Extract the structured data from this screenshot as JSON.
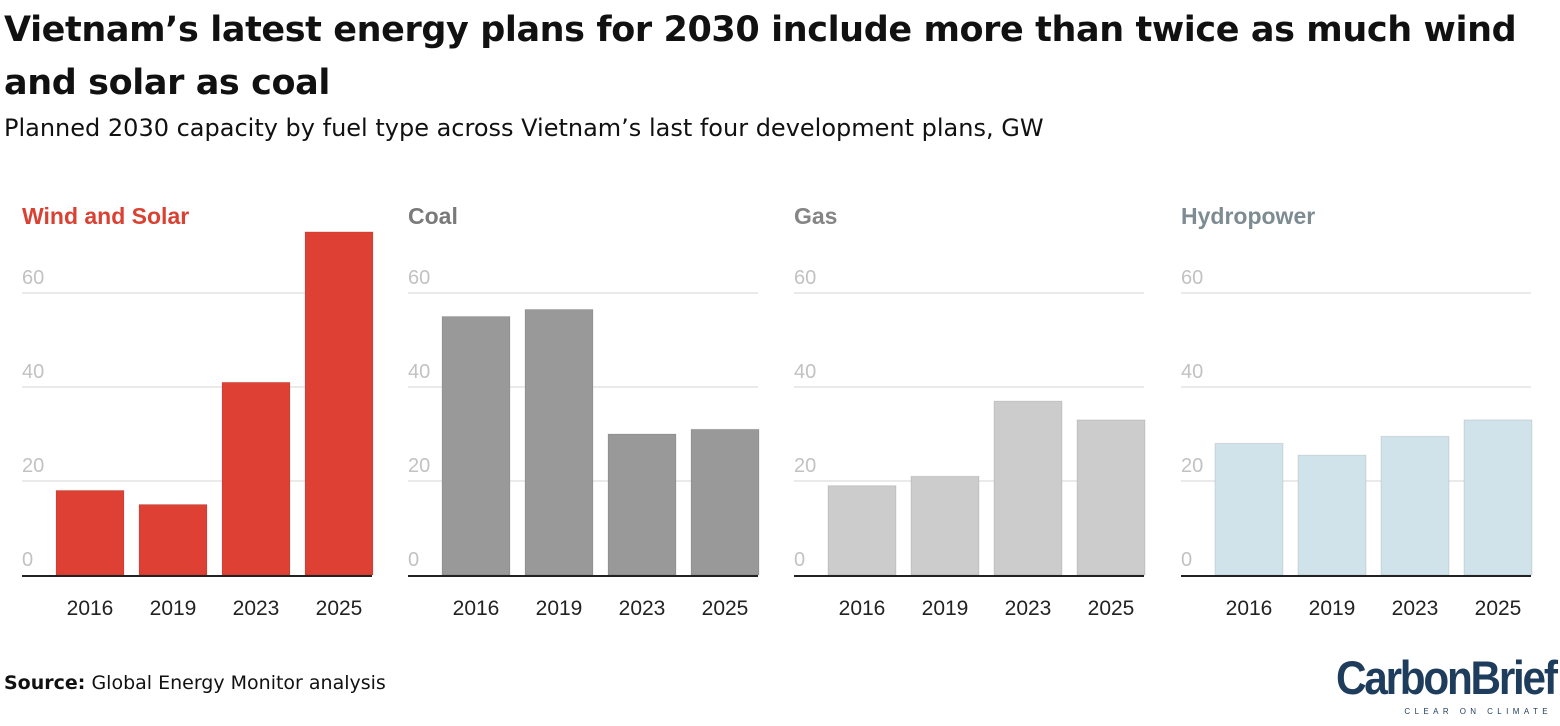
{
  "title": "Vietnam’s latest energy plans for 2030 include more than twice as much wind and solar as coal",
  "subtitle": "Planned 2030 capacity by fuel type across Vietnam’s last four development plans, GW",
  "source": {
    "label": "Source:",
    "text": "Global Energy Monitor analysis"
  },
  "logo": {
    "name": "CarbonBrief",
    "tagline": "CLEAR ON CLIMATE"
  },
  "chart_data": [
    {
      "type": "bar",
      "title": "Wind and Solar",
      "title_color": "#d94133",
      "bar_color": "#de4133",
      "categories": [
        "2016",
        "2019",
        "2023",
        "2025"
      ],
      "values": [
        18,
        15,
        41,
        73
      ],
      "yticks": [
        0,
        20,
        40,
        60
      ],
      "ylim": [
        0,
        73
      ],
      "xlabel": "",
      "ylabel": ""
    },
    {
      "type": "bar",
      "title": "Coal",
      "title_color": "#7a7a7a",
      "bar_color": "#999999",
      "categories": [
        "2016",
        "2019",
        "2023",
        "2025"
      ],
      "values": [
        55,
        56.5,
        30,
        31
      ],
      "yticks": [
        0,
        20,
        40,
        60
      ],
      "ylim": [
        0,
        73
      ],
      "xlabel": "",
      "ylabel": ""
    },
    {
      "type": "bar",
      "title": "Gas",
      "title_color": "#858585",
      "bar_color": "#cccccc",
      "categories": [
        "2016",
        "2019",
        "2023",
        "2025"
      ],
      "values": [
        19,
        21,
        37,
        33
      ],
      "yticks": [
        0,
        20,
        40,
        60
      ],
      "ylim": [
        0,
        73
      ],
      "xlabel": "",
      "ylabel": ""
    },
    {
      "type": "bar",
      "title": "Hydropower",
      "title_color": "#7d8b93",
      "bar_color": "#d1e3ea",
      "categories": [
        "2016",
        "2019",
        "2023",
        "2025"
      ],
      "values": [
        28,
        25.5,
        29.5,
        33
      ],
      "yticks": [
        0,
        20,
        40,
        60
      ],
      "ylim": [
        0,
        73
      ],
      "xlabel": "",
      "ylabel": ""
    }
  ]
}
